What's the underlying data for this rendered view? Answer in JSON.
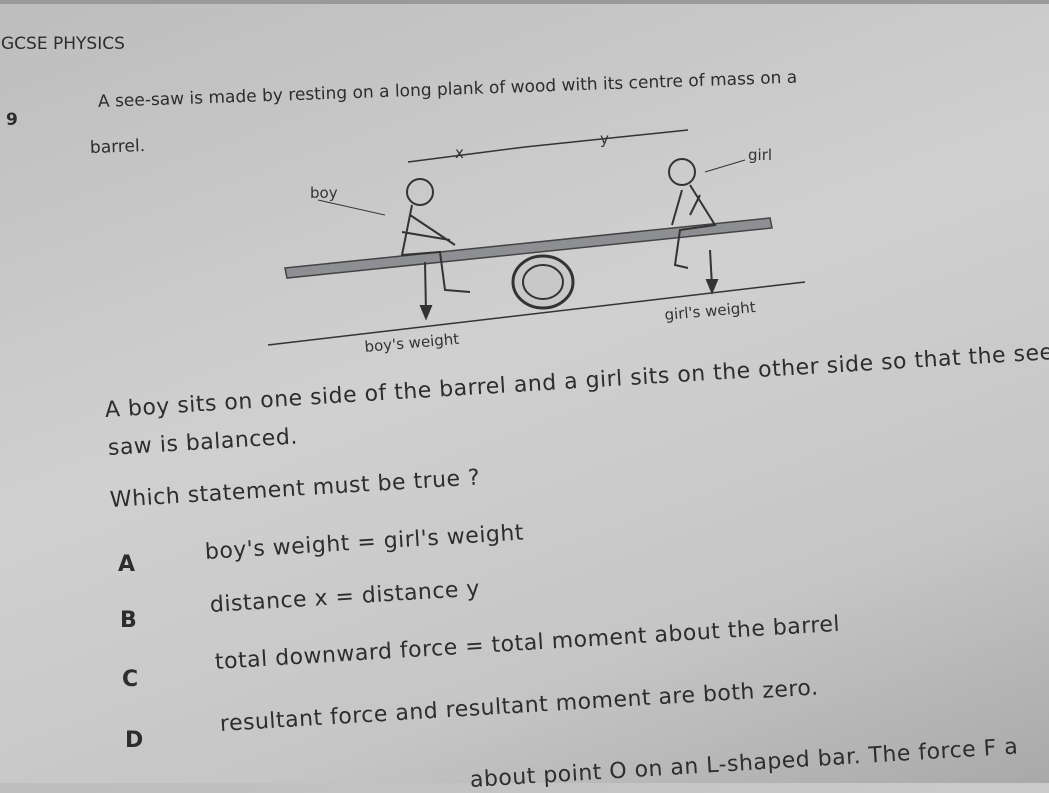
{
  "header": {
    "title": "IGCSE PHYSICS"
  },
  "question": {
    "number": "9",
    "intro": [
      "A see-saw is made by resting on a long plank of wood with its centre of mass on a",
      "barrel."
    ],
    "diagram": {
      "x_label": "x",
      "y_label": "y",
      "girl": "girl",
      "boy": "boy",
      "boys_weight": "boy's weight",
      "girls_weight": "girl's weight"
    },
    "body": [
      "A boy sits on one side of the barrel and a girl sits on the other side so that the see-",
      "saw is balanced."
    ],
    "prompt": "Which statement must be true ?",
    "options": [
      {
        "letter": "A",
        "text": "boy's weight = girl's weight"
      },
      {
        "letter": "B",
        "text": "distance x = distance y"
      },
      {
        "letter": "C",
        "text": "total downward force = total moment about the barrel"
      },
      {
        "letter": "D",
        "text": "resultant force and resultant moment are both zero."
      }
    ]
  },
  "footer": {
    "cut_text": "about point O on an L-shaped bar. The force F a"
  }
}
